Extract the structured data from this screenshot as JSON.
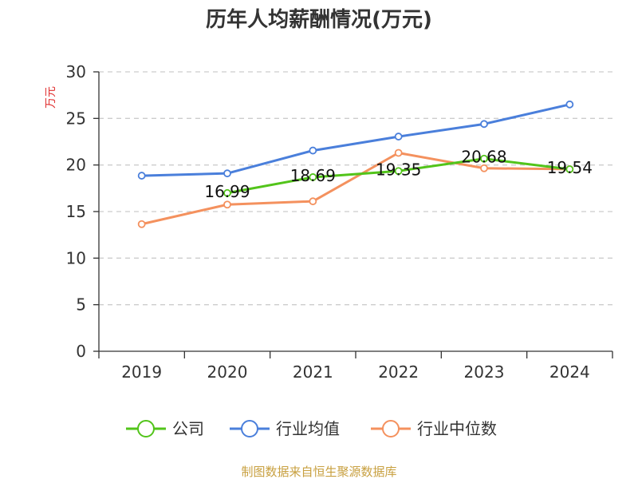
{
  "chart_data": {
    "type": "line",
    "title": "历年人均薪酬情况(万元)",
    "ylabel": "万元",
    "xlabel": "",
    "ylim": [
      0,
      30
    ],
    "yticks": [
      0,
      5,
      10,
      15,
      20,
      25,
      30
    ],
    "categories": [
      "2019",
      "2020",
      "2021",
      "2022",
      "2023",
      "2024"
    ],
    "grid": true,
    "legend_position": "bottom",
    "series": [
      {
        "key": "company",
        "name": "公司",
        "color": "#52c41a",
        "values": [
          null,
          16.99,
          18.69,
          19.35,
          20.68,
          19.54
        ],
        "labels": [
          null,
          "16.99",
          "18.69",
          "19.35",
          "20.68",
          "19.54"
        ]
      },
      {
        "key": "industry-avg",
        "name": "行业均值",
        "color": "#4a7fdb",
        "values": [
          18.85,
          19.1,
          21.55,
          23.05,
          24.4,
          26.5
        ]
      },
      {
        "key": "industry-median",
        "name": "行业中位数",
        "color": "#f4915e",
        "values": [
          13.65,
          15.75,
          16.1,
          21.3,
          19.65,
          19.55
        ]
      }
    ]
  },
  "footer": {
    "source": "制图数据来自恒生聚源数据库",
    "source_color": "#c8a040"
  },
  "colors": {
    "axis": "#333333",
    "grid": "#cccccc",
    "unit_label": "#e03030"
  }
}
